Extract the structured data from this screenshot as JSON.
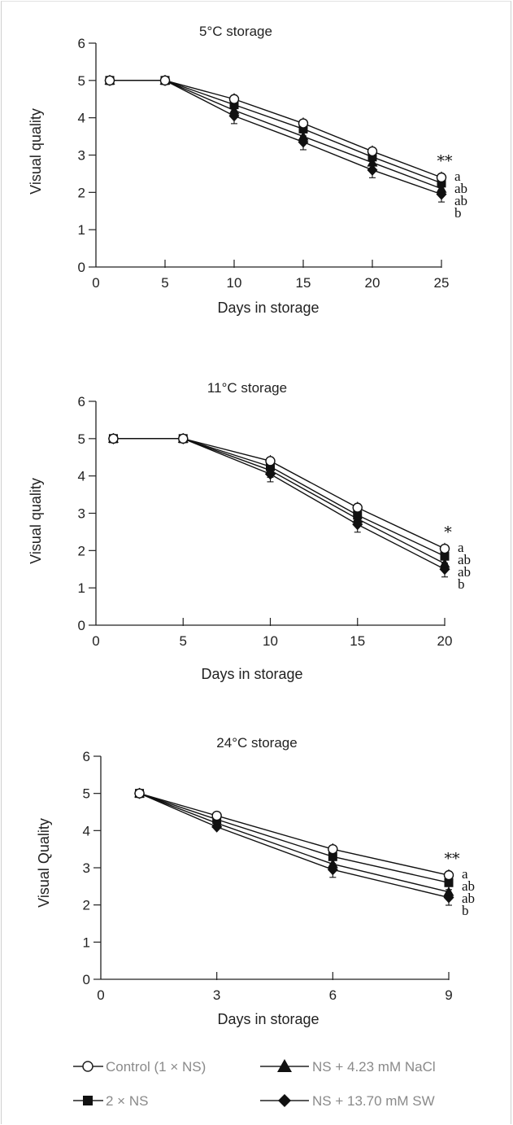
{
  "chart_data": [
    {
      "type": "line",
      "title": "5°C storage",
      "xlabel": "Days in storage",
      "ylabel": "Visual quality",
      "xlim": [
        0,
        25
      ],
      "ylim": [
        0,
        6
      ],
      "xticks": [
        0,
        5,
        10,
        15,
        20,
        25
      ],
      "yticks": [
        0,
        1,
        2,
        3,
        4,
        5,
        6
      ],
      "x": [
        1,
        5,
        10,
        15,
        20,
        25
      ],
      "series": [
        {
          "name": "Control (1 × NS)",
          "values": [
            5.0,
            5.0,
            4.5,
            3.85,
            3.1,
            2.4
          ]
        },
        {
          "name": "2 × NS",
          "values": [
            5.0,
            5.0,
            4.35,
            3.7,
            2.95,
            2.25
          ]
        },
        {
          "name": "NS + 4.23 mM NaCl",
          "values": [
            5.0,
            5.0,
            4.2,
            3.5,
            2.8,
            2.1
          ]
        },
        {
          "name": "NS + 13.70 mM SW",
          "values": [
            5.0,
            5.0,
            4.05,
            3.35,
            2.6,
            1.95
          ]
        }
      ],
      "significance": "**",
      "group_letters": [
        "a",
        "ab",
        "ab",
        "b"
      ],
      "grid": false
    },
    {
      "type": "line",
      "title": "11°C storage",
      "xlabel": "Days in storage",
      "ylabel": "Visual quality",
      "xlim": [
        0,
        20
      ],
      "ylim": [
        0,
        6
      ],
      "xticks": [
        0,
        5,
        10,
        15,
        20
      ],
      "yticks": [
        0,
        1,
        2,
        3,
        4,
        5,
        6
      ],
      "x": [
        1,
        5,
        10,
        15,
        20
      ],
      "series": [
        {
          "name": "Control (1 × NS)",
          "values": [
            5.0,
            5.0,
            4.4,
            3.15,
            2.05
          ]
        },
        {
          "name": "2 × NS",
          "values": [
            5.0,
            5.0,
            4.25,
            2.95,
            1.85
          ]
        },
        {
          "name": "NS + 4.23 mM NaCl",
          "values": [
            5.0,
            5.0,
            4.15,
            2.85,
            1.65
          ]
        },
        {
          "name": "NS + 13.70 mM SW",
          "values": [
            5.0,
            5.0,
            4.05,
            2.7,
            1.5
          ]
        }
      ],
      "significance": "*",
      "group_letters": [
        "a",
        "ab",
        "ab",
        "b"
      ],
      "grid": false
    },
    {
      "type": "line",
      "title": "24°C storage",
      "xlabel": "Days in storage",
      "ylabel": "Visual Quality",
      "xlim": [
        0,
        9
      ],
      "ylim": [
        0,
        6
      ],
      "xticks": [
        0,
        3,
        6,
        9
      ],
      "yticks": [
        0,
        1,
        2,
        3,
        4,
        5,
        6
      ],
      "x": [
        1,
        3,
        6,
        9
      ],
      "series": [
        {
          "name": "Control (1 × NS)",
          "values": [
            5.0,
            4.4,
            3.5,
            2.8
          ]
        },
        {
          "name": "2 × NS",
          "values": [
            5.0,
            4.3,
            3.3,
            2.6
          ]
        },
        {
          "name": "NS + 4.23 mM NaCl",
          "values": [
            5.0,
            4.2,
            3.1,
            2.35
          ]
        },
        {
          "name": "NS + 13.70 mM SW",
          "values": [
            5.0,
            4.1,
            2.95,
            2.2
          ]
        }
      ],
      "significance": "**",
      "group_letters": [
        "a",
        "ab",
        "ab",
        "b"
      ],
      "grid": false
    }
  ],
  "legend": {
    "placement": "bottom",
    "items": [
      {
        "label": "Control (1 × NS)",
        "marker": "open-circle"
      },
      {
        "label": "NS + 4.23 mM NaCl",
        "marker": "filled-triangle"
      },
      {
        "label": "2 × NS",
        "marker": "filled-square"
      },
      {
        "label": "NS + 13.70 mM SW",
        "marker": "filled-diamond"
      }
    ]
  },
  "colors": {
    "axis": "#222222",
    "marker": "#111111",
    "legend_text": "#8a8a8a"
  }
}
